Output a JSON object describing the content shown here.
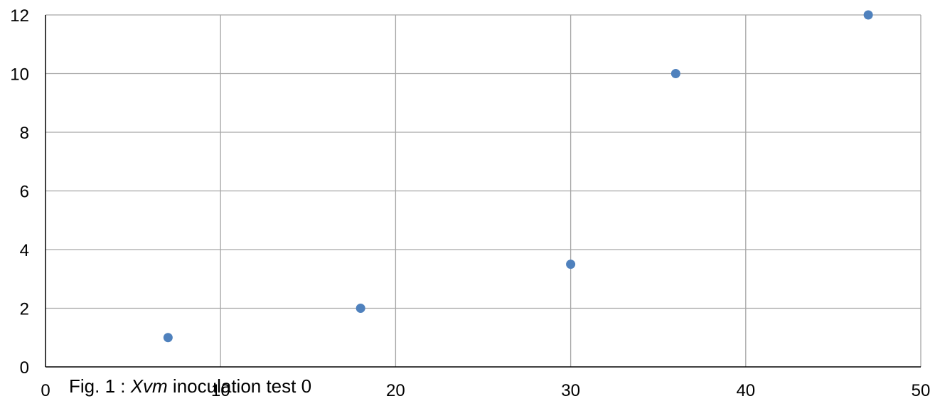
{
  "caption": {
    "prefix": "Fig. 1 : ",
    "species": "Xvm",
    "suffix": " inoculation test 0"
  },
  "colors": {
    "marker": "#4f81bd",
    "grid": "#a6a6a6",
    "axis": "#000000"
  },
  "chart_data": {
    "type": "scatter",
    "title": "",
    "xlabel": "",
    "ylabel": "",
    "xlim": [
      0,
      50
    ],
    "ylim": [
      0,
      12
    ],
    "x_ticks": [
      0,
      10,
      20,
      30,
      40,
      50
    ],
    "y_ticks": [
      0,
      2,
      4,
      6,
      8,
      10,
      12
    ],
    "grid": true,
    "legend": "none",
    "series": [
      {
        "x": [
          7,
          18,
          30,
          36,
          47
        ],
        "y": [
          1,
          2,
          3.5,
          10,
          12
        ]
      }
    ]
  }
}
